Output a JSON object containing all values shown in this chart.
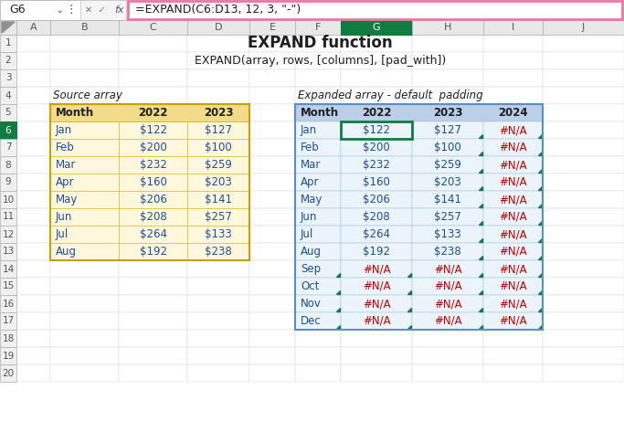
{
  "title": "EXPAND function",
  "subtitle": "EXPAND(array, rows, [columns], [pad_with])",
  "formula_bar_cell": "G6",
  "formula_bar_text": "=EXPAND(C6:D13, 12, 3, \"-\")",
  "formula_bar_border": "#E879A0",
  "source_label": "Source array",
  "source_header": [
    "Month",
    "2022",
    "2023"
  ],
  "source_bg": "#FFF8DC",
  "source_header_bg": "#F5E6A0",
  "source_rows": [
    [
      "Jan",
      "$122",
      "$127"
    ],
    [
      "Feb",
      "$200",
      "$100"
    ],
    [
      "Mar",
      "$232",
      "$259"
    ],
    [
      "Apr",
      "$160",
      "$203"
    ],
    [
      "May",
      "$206",
      "$141"
    ],
    [
      "Jun",
      "$208",
      "$257"
    ],
    [
      "Jul",
      "$264",
      "$133"
    ],
    [
      "Aug",
      "$192",
      "$238"
    ]
  ],
  "expanded_label": "Expanded array - default  padding",
  "expanded_header": [
    "Month",
    "2022",
    "2023",
    "2024"
  ],
  "expanded_bg": "#EBF3FB",
  "expanded_header_bg": "#C5DCF0",
  "expanded_rows": [
    [
      "Jan",
      "$122",
      "$127",
      "#N/A"
    ],
    [
      "Feb",
      "$200",
      "$100",
      "#N/A"
    ],
    [
      "Mar",
      "$232",
      "$259",
      "#N/A"
    ],
    [
      "Apr",
      "$160",
      "$203",
      "#N/A"
    ],
    [
      "May",
      "$206",
      "$141",
      "#N/A"
    ],
    [
      "Jun",
      "$208",
      "$257",
      "#N/A"
    ],
    [
      "Jul",
      "$264",
      "$133",
      "#N/A"
    ],
    [
      "Aug",
      "$192",
      "$238",
      "#N/A"
    ],
    [
      "Sep",
      "#N/A",
      "#N/A",
      "#N/A"
    ],
    [
      "Oct",
      "#N/A",
      "#N/A",
      "#N/A"
    ],
    [
      "Nov",
      "#N/A",
      "#N/A",
      "#N/A"
    ],
    [
      "Dec",
      "#N/A",
      "#N/A",
      "#N/A"
    ]
  ],
  "col_letters": [
    "A",
    "B",
    "C",
    "D",
    "E",
    "F",
    "G",
    "H",
    "I",
    "J"
  ],
  "row_numbers": [
    "1",
    "2",
    "3",
    "4",
    "5",
    "6",
    "7",
    "8",
    "9",
    "10",
    "11",
    "12",
    "13",
    "14",
    "15",
    "16",
    "17",
    "18",
    "19",
    "20"
  ],
  "col_header_selected_bg": "#107C41",
  "selected_cell_border": "#107C41",
  "na_color": "#C00000",
  "triangle_color": "#107C41",
  "blue_text": "#1F4E97",
  "grid_color": "#D0D0D0",
  "rh_selected_bg": "#107C41"
}
